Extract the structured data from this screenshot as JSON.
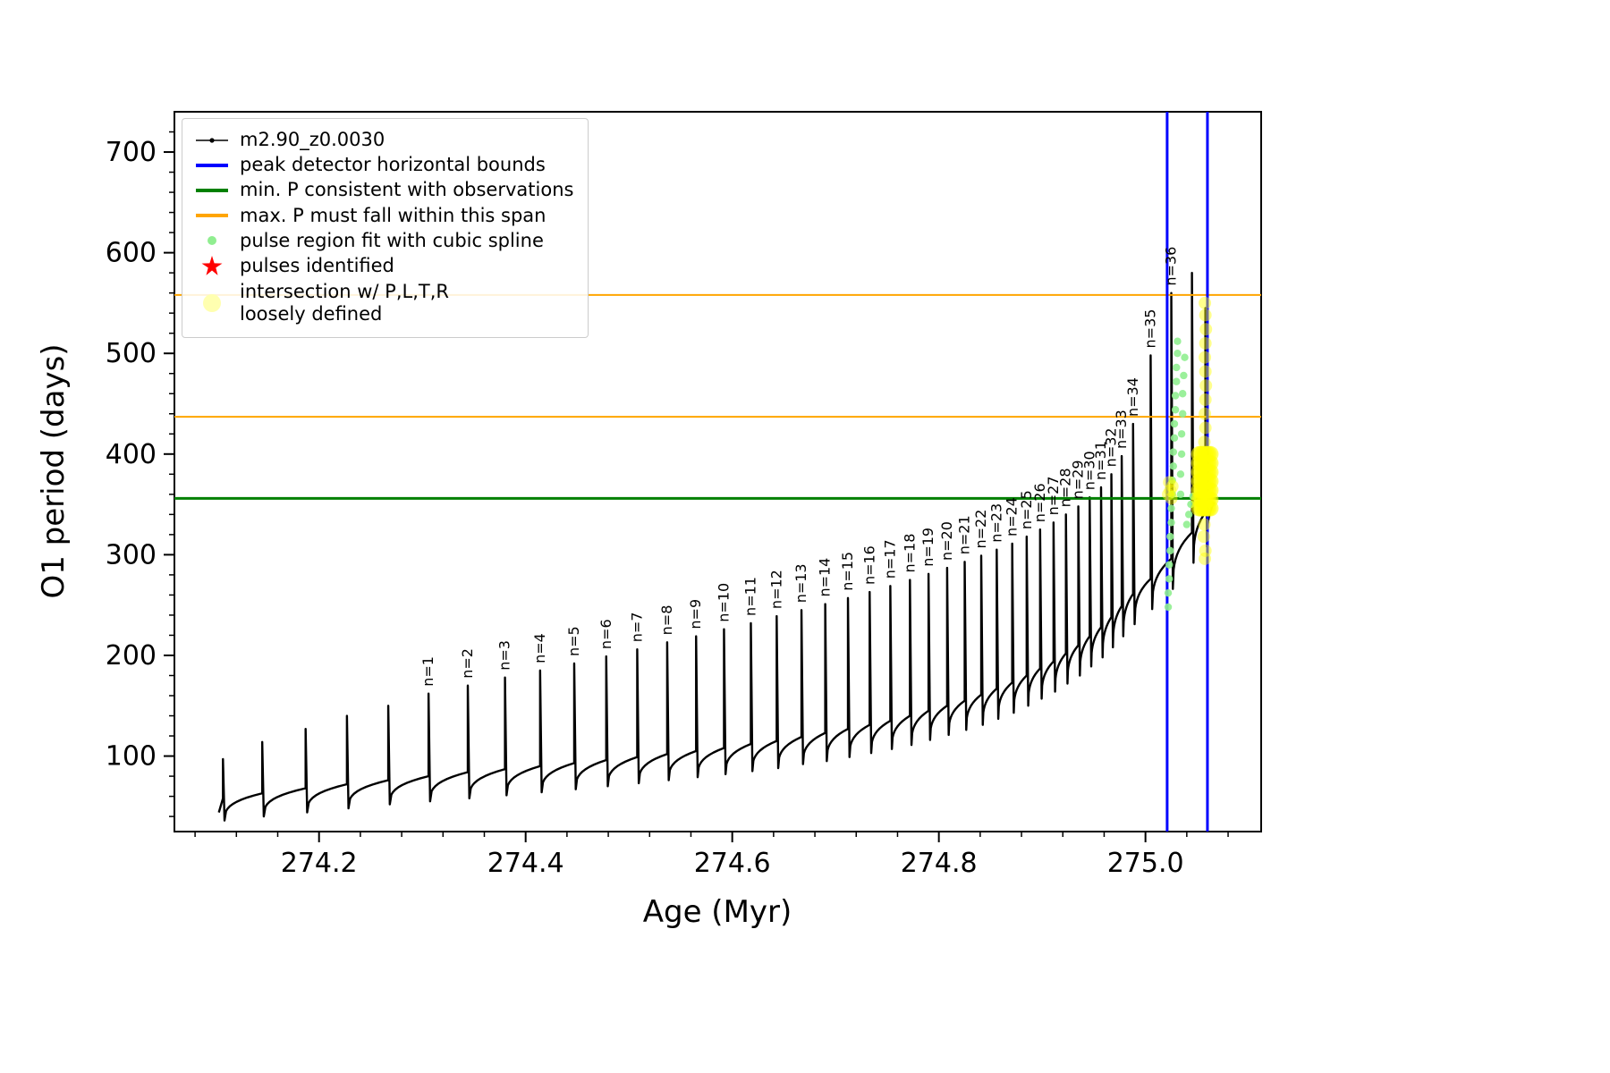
{
  "legend": {
    "items": [
      {
        "label": "m2.90_z0.0030",
        "marker": "line-dot",
        "color": "#000000"
      },
      {
        "label": "peak detector horizontal bounds",
        "marker": "line",
        "color": "#0000ff"
      },
      {
        "label": "min. P consistent with observations",
        "marker": "line",
        "color": "#008000"
      },
      {
        "label": "max. P must fall within this span",
        "marker": "line",
        "color": "#ffa500"
      },
      {
        "label": "pulse region fit with cubic spline",
        "marker": "dot",
        "color": "#90ee90"
      },
      {
        "label": "pulses identified",
        "marker": "star",
        "color": "#ff0000"
      },
      {
        "label": "intersection w/ P,L,T,R\nloosely defined",
        "marker": "big-dot",
        "color": "#ffffb0"
      }
    ]
  },
  "chart_data": {
    "type": "line",
    "title": "",
    "xlabel": "Age (Myr)",
    "ylabel": "O1 period (days)",
    "xlim": [
      274.06,
      275.112
    ],
    "ylim": [
      25,
      740
    ],
    "xticks": [
      274.2,
      274.4,
      274.6,
      274.8,
      275.0
    ],
    "xtick_labels": [
      "274.2",
      "274.4",
      "274.6",
      "274.8",
      "275.0"
    ],
    "yticks": [
      100,
      200,
      300,
      400,
      500,
      600,
      700
    ],
    "ytick_labels": [
      "100",
      "200",
      "300",
      "400",
      "500",
      "600",
      "700"
    ],
    "x_minor_step": 0.04,
    "y_minor_step": 20,
    "grid": false,
    "legend_position": "upper left",
    "series_label": "m2.90_z0.0030",
    "curve_color": "#000000",
    "vlines": {
      "color": "#0000ff",
      "x": [
        275.021,
        275.06
      ]
    },
    "hlines": [
      {
        "color": "#008000",
        "y": 356,
        "width": 3
      },
      {
        "color": "#ffa500",
        "y": 437,
        "width": 2
      },
      {
        "color": "#ffa500",
        "y": 558,
        "width": 2
      }
    ],
    "curve_end": [
      275.066,
      352
    ],
    "pulses": [
      [
        274.107,
        97,
        58,
        36,
        ""
      ],
      [
        274.145,
        114,
        63,
        40,
        ""
      ],
      [
        274.187,
        127,
        68,
        44,
        ""
      ],
      [
        274.227,
        140,
        72,
        48,
        ""
      ],
      [
        274.267,
        150,
        76,
        52,
        ""
      ],
      [
        274.306,
        162,
        80,
        55,
        "n=1"
      ],
      [
        274.344,
        170,
        84,
        58,
        "n=2"
      ],
      [
        274.38,
        178,
        87,
        61,
        "n=3"
      ],
      [
        274.414,
        185,
        90,
        64,
        "n=4"
      ],
      [
        274.447,
        192,
        93,
        67,
        "n=5"
      ],
      [
        274.478,
        199,
        96,
        70,
        "n=6"
      ],
      [
        274.508,
        206,
        99,
        73,
        "n=7"
      ],
      [
        274.537,
        213,
        102,
        76,
        "n=8"
      ],
      [
        274.565,
        219,
        105,
        79,
        "n=9"
      ],
      [
        274.592,
        226,
        108,
        82,
        "n=10"
      ],
      [
        274.618,
        232,
        112,
        85,
        "n=11"
      ],
      [
        274.643,
        239,
        115,
        88,
        "n=12"
      ],
      [
        274.667,
        245,
        119,
        92,
        "n=13"
      ],
      [
        274.69,
        251,
        123,
        95,
        "n=14"
      ],
      [
        274.712,
        257,
        127,
        99,
        "n=15"
      ],
      [
        274.733,
        263,
        131,
        103,
        "n=16"
      ],
      [
        274.753,
        269,
        135,
        107,
        "n=17"
      ],
      [
        274.772,
        275,
        140,
        111,
        "n=18"
      ],
      [
        274.79,
        281,
        145,
        116,
        "n=19"
      ],
      [
        274.808,
        287,
        150,
        121,
        "n=20"
      ],
      [
        274.825,
        293,
        155,
        126,
        "n=21"
      ],
      [
        274.841,
        299,
        161,
        131,
        "n=22"
      ],
      [
        274.856,
        305,
        167,
        137,
        "n=23"
      ],
      [
        274.871,
        311,
        173,
        143,
        "n=24"
      ],
      [
        274.885,
        318,
        180,
        150,
        "n=25"
      ],
      [
        274.898,
        325,
        187,
        157,
        "n=26"
      ],
      [
        274.911,
        332,
        194,
        164,
        "n=27"
      ],
      [
        274.923,
        340,
        202,
        172,
        "n=28"
      ],
      [
        274.935,
        348,
        210,
        180,
        "n=29"
      ],
      [
        274.946,
        357,
        219,
        189,
        "n=30"
      ],
      [
        274.957,
        367,
        228,
        198,
        "n=31"
      ],
      [
        274.967,
        380,
        238,
        208,
        "n=32"
      ],
      [
        274.977,
        398,
        249,
        219,
        "n=33"
      ],
      [
        274.988,
        430,
        261,
        231,
        "n=34"
      ],
      [
        275.005,
        498,
        276,
        246,
        "n=35"
      ],
      [
        275.025,
        560,
        296,
        266,
        "n=36"
      ],
      [
        275.045,
        580,
        322,
        292,
        ""
      ],
      [
        275.058,
        545,
        342,
        308,
        ""
      ]
    ],
    "spline_fit_points": [
      [
        275.022,
        248
      ],
      [
        275.022,
        262
      ],
      [
        275.023,
        276
      ],
      [
        275.023,
        290
      ],
      [
        275.024,
        304
      ],
      [
        275.024,
        318
      ],
      [
        275.025,
        332
      ],
      [
        275.025,
        346
      ],
      [
        275.026,
        360
      ],
      [
        275.026,
        374
      ],
      [
        275.027,
        388
      ],
      [
        275.027,
        402
      ],
      [
        275.028,
        416
      ],
      [
        275.028,
        430
      ],
      [
        275.029,
        444
      ],
      [
        275.029,
        458
      ],
      [
        275.03,
        472
      ],
      [
        275.03,
        486
      ],
      [
        275.031,
        500
      ],
      [
        275.031,
        512
      ],
      [
        275.034,
        360
      ],
      [
        275.034,
        380
      ],
      [
        275.035,
        400
      ],
      [
        275.035,
        420
      ],
      [
        275.036,
        440
      ],
      [
        275.036,
        460
      ],
      [
        275.037,
        478
      ],
      [
        275.038,
        496
      ],
      [
        275.04,
        330
      ],
      [
        275.042,
        340
      ],
      [
        275.044,
        350
      ],
      [
        275.046,
        358
      ]
    ],
    "intersection_blob": {
      "x_range": [
        275.052,
        275.063
      ],
      "y_range": [
        346,
        400
      ],
      "cols": 7,
      "rows": 7
    },
    "intersection_stray_points": [
      [
        275.057,
        412
      ],
      [
        275.058,
        426
      ],
      [
        275.0575,
        440
      ],
      [
        275.058,
        454
      ],
      [
        275.0585,
        468
      ],
      [
        275.058,
        482
      ],
      [
        275.0575,
        496
      ],
      [
        275.058,
        510
      ],
      [
        275.0585,
        524
      ],
      [
        275.058,
        538
      ],
      [
        275.0575,
        550
      ],
      [
        275.057,
        330
      ],
      [
        275.0565,
        318
      ],
      [
        275.058,
        304
      ],
      [
        275.0575,
        296
      ],
      [
        275.022,
        360
      ],
      [
        275.024,
        364
      ],
      [
        275.026,
        368
      ],
      [
        275.023,
        372
      ],
      [
        275.025,
        356
      ]
    ],
    "scatter_colors": {
      "spline_fit": "#90ee90",
      "intersection": "#ffff00"
    }
  }
}
